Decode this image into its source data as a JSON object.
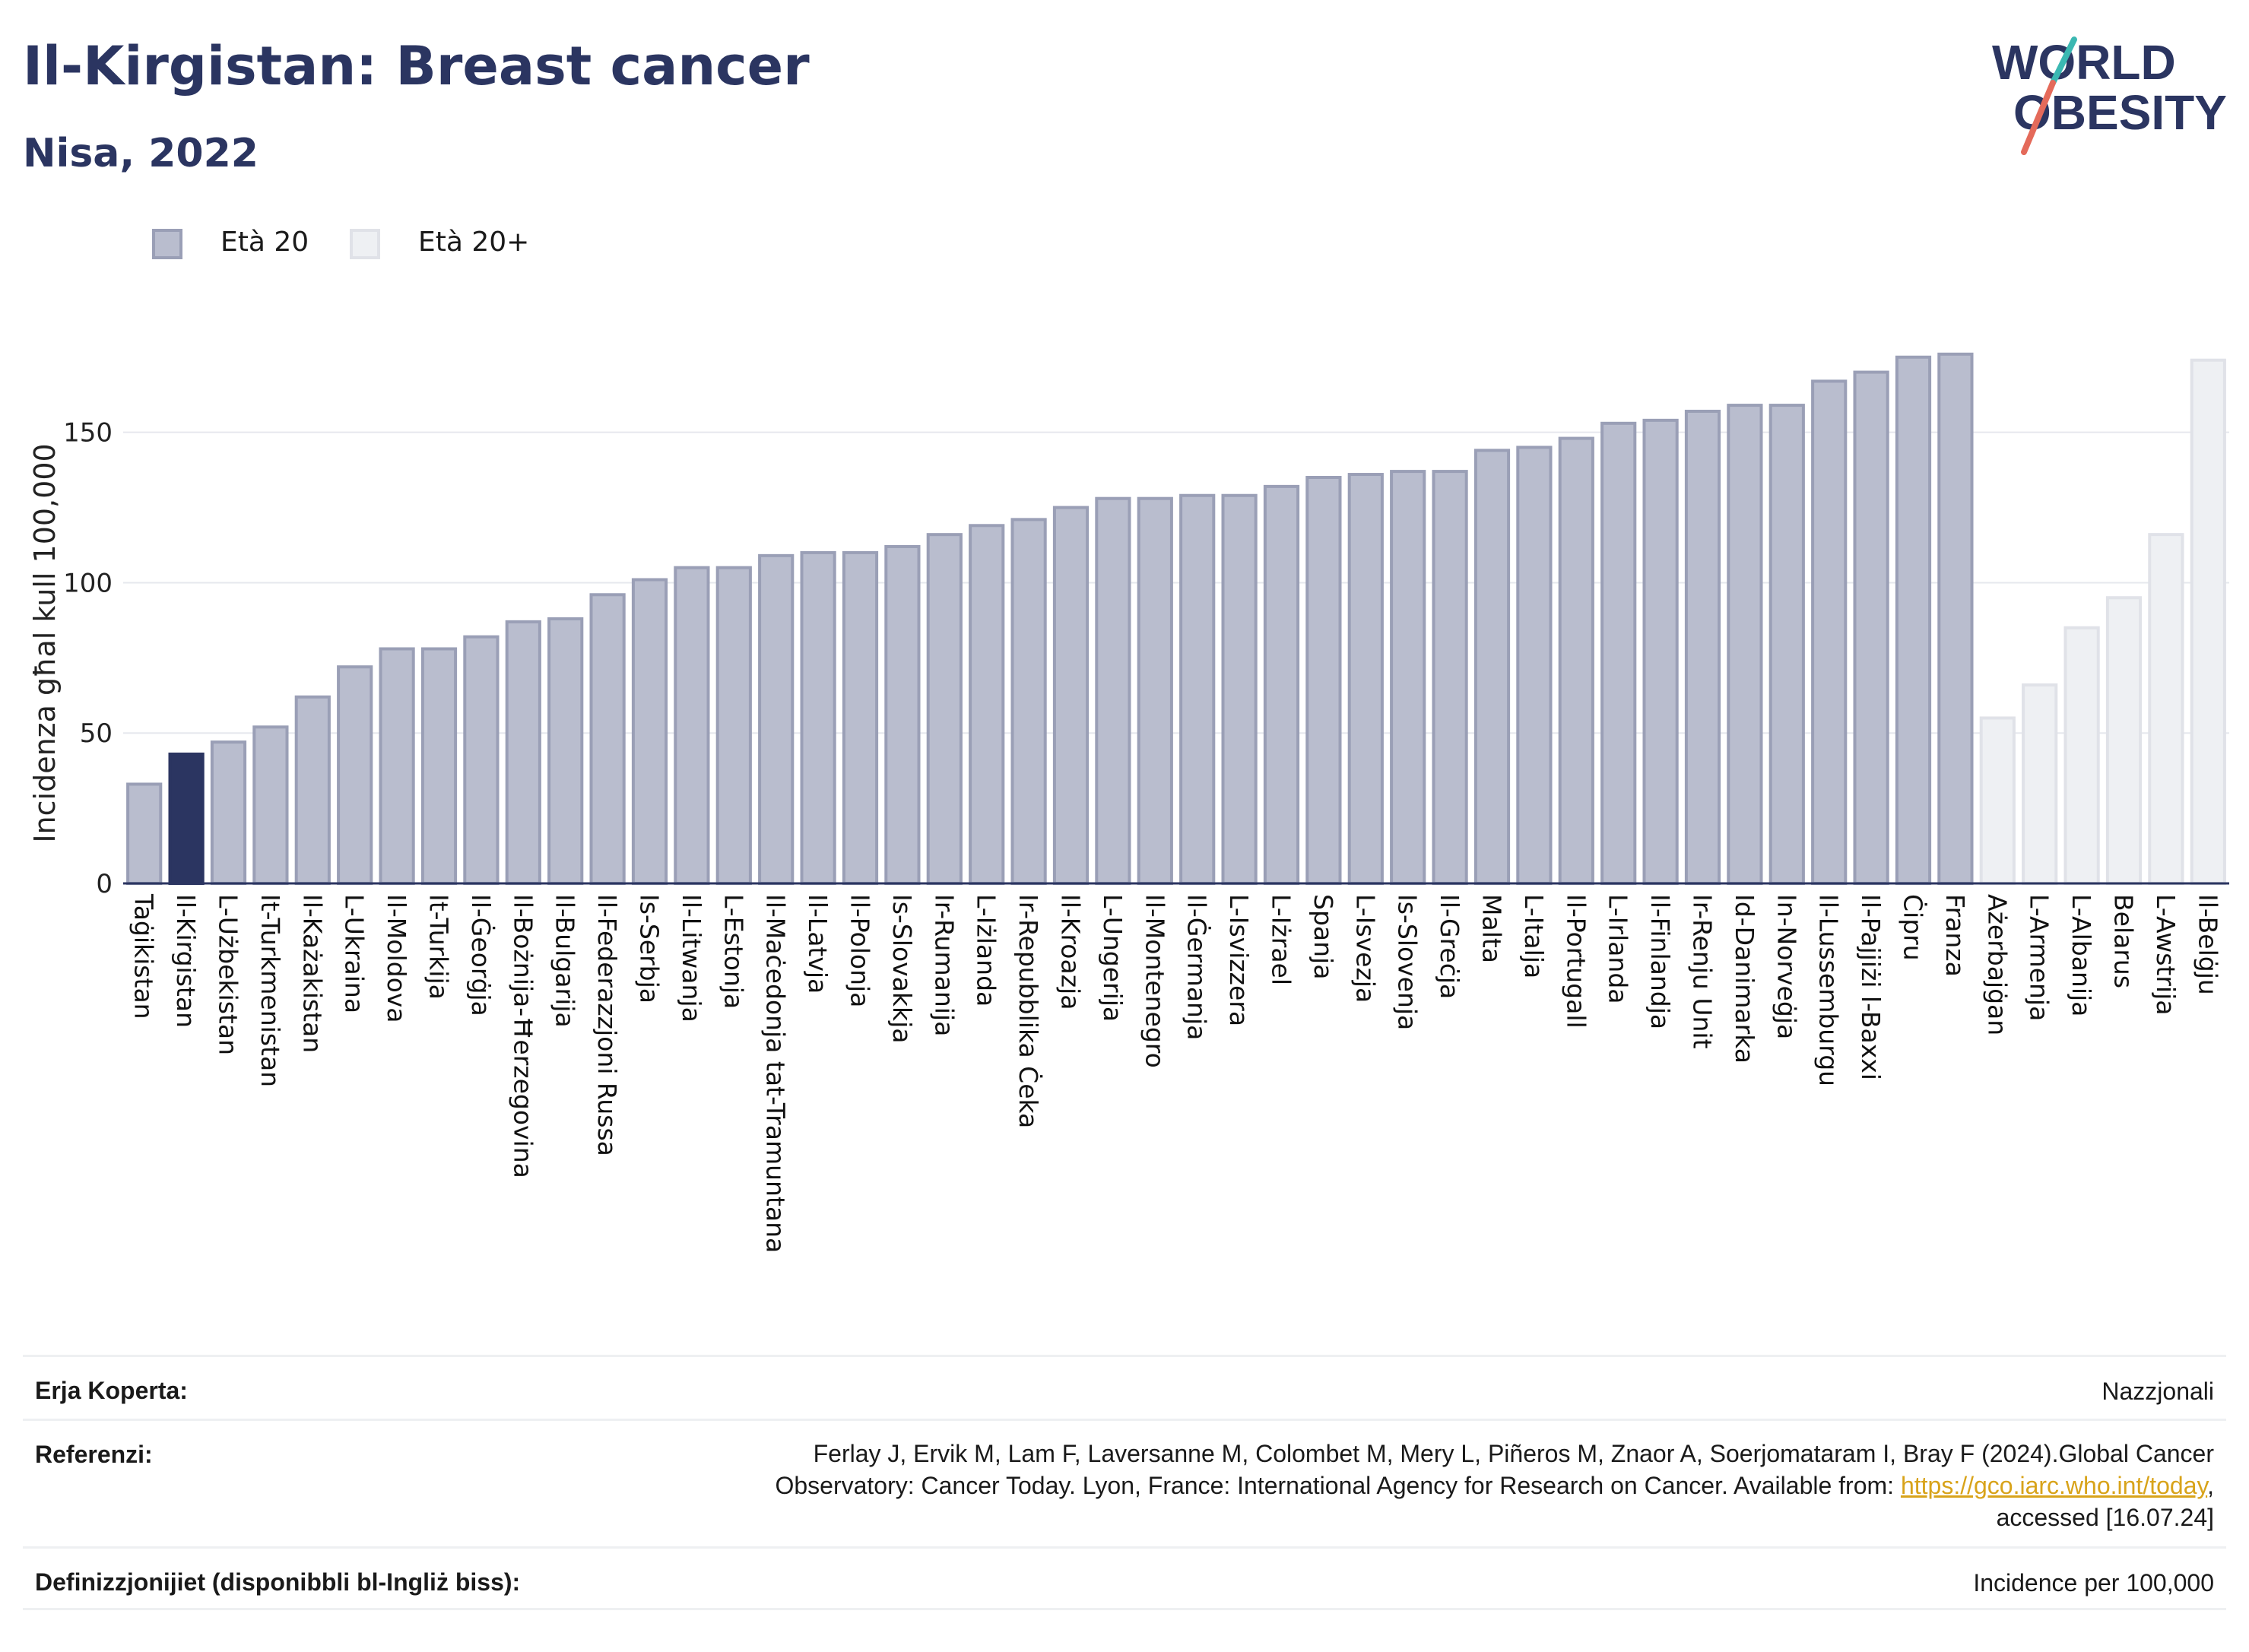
{
  "header": {
    "title": "Il-Kirgistan: Breast cancer",
    "subtitle": "Nisa, 2022",
    "logo_line1": "WORLD",
    "logo_line2": "OBESITY"
  },
  "legend": {
    "items": [
      {
        "label": "Età 20",
        "color": "#b8bccd"
      },
      {
        "label": "Età 20+",
        "color": "#eef0f3"
      }
    ]
  },
  "chart_data": {
    "type": "bar",
    "title": "Il-Kirgistan: Breast cancer",
    "subtitle": "Nisa, 2022",
    "ylabel": "Incidenza għal kull 100,000",
    "xlabel": "",
    "ylim": [
      0,
      180
    ],
    "yticks": [
      0,
      50,
      100,
      150
    ],
    "grid": true,
    "legend_position": "top-left",
    "highlight_category": "Il-Kirgistan",
    "colors": {
      "series": "#b9bdce",
      "series_stroke": "#9a9fb6",
      "highlight": "#2b3561",
      "light": "#eef0f3",
      "light_stroke": "#e0e2e8"
    },
    "categories": [
      "Taġikistan",
      "Il-Kirgistan",
      "L-Użbekistan",
      "It-Turkmenistan",
      "Il-Każakistan",
      "L-Ukraina",
      "Il-Moldova",
      "It-Turkija",
      "Il-Ġeorġja",
      "Il-Bożnija-Ħerzegovina",
      "Il-Bulgarija",
      "Il-Federazzjoni Russa",
      "Is-Serbja",
      "Il-Litwanja",
      "L-Estonja",
      "Il-Maċedonja tat-Tramuntana",
      "Il-Latvja",
      "Il-Polonja",
      "Is-Slovakkja",
      "Ir-Rumanija",
      "L-Iżlanda",
      "Ir-Repubblika Ċeka",
      "Il-Kroazja",
      "L-Ungerija",
      "Il-Montenegro",
      "Il-Ġermanja",
      "L-Isvizzera",
      "L-Iżrael",
      "Spanja",
      "L-Isvezja",
      "Is-Slovenja",
      "Il-Greċja",
      "Malta",
      "L-Italja",
      "Il-Portugall",
      "L-Irlanda",
      "Il-Finlandja",
      "Ir-Renju Unit",
      "Id-Danimarka",
      "In-Norveġja",
      "Il-Lussemburgu",
      "Il-Pajjiżi l-Baxxi",
      "Ċipru",
      "Franza",
      "Ażerbajġan",
      "L-Armenja",
      "L-Albanija",
      "Belarus",
      "L-Awstrija",
      "Il-Belġju"
    ],
    "series": [
      {
        "name": "Età 20",
        "values": [
          33,
          43,
          47,
          52,
          62,
          72,
          78,
          78,
          82,
          87,
          88,
          96,
          101,
          105,
          105,
          109,
          110,
          110,
          112,
          116,
          119,
          121,
          125,
          128,
          128,
          129,
          129,
          132,
          135,
          136,
          137,
          137,
          144,
          145,
          148,
          153,
          154,
          157,
          159,
          159,
          167,
          170,
          175,
          176,
          null,
          null,
          null,
          null,
          null,
          null
        ]
      },
      {
        "name": "Età 20+",
        "values": [
          null,
          null,
          null,
          null,
          null,
          null,
          null,
          null,
          null,
          null,
          null,
          null,
          null,
          null,
          null,
          null,
          null,
          null,
          null,
          null,
          null,
          null,
          null,
          null,
          null,
          null,
          null,
          null,
          null,
          null,
          null,
          null,
          null,
          null,
          null,
          null,
          null,
          null,
          null,
          null,
          null,
          null,
          null,
          null,
          55,
          66,
          85,
          95,
          116,
          174
        ]
      }
    ]
  },
  "footer": {
    "coverage_label": "Erja Koperta:",
    "coverage_value": "Nazzjonali",
    "references_label": "Referenzi:",
    "references_line1": "Ferlay J, Ervik M, Lam F, Laversanne M, Colombet M, Mery L, Piñeros M, Znaor A, Soerjomataram I, Bray F (2024).Global Cancer",
    "references_line2_prefix": "Observatory: Cancer Today. Lyon, France: International Agency for Research on Cancer. Available from: ",
    "references_link": "https://gco.iarc.who.int/today",
    "references_line2_suffix": ",",
    "references_line3": "accessed [16.07.24]",
    "definitions_label": "Definizzjonijiet (disponibbli bl-Ingliż biss):",
    "definitions_value": "Incidence per 100,000"
  }
}
